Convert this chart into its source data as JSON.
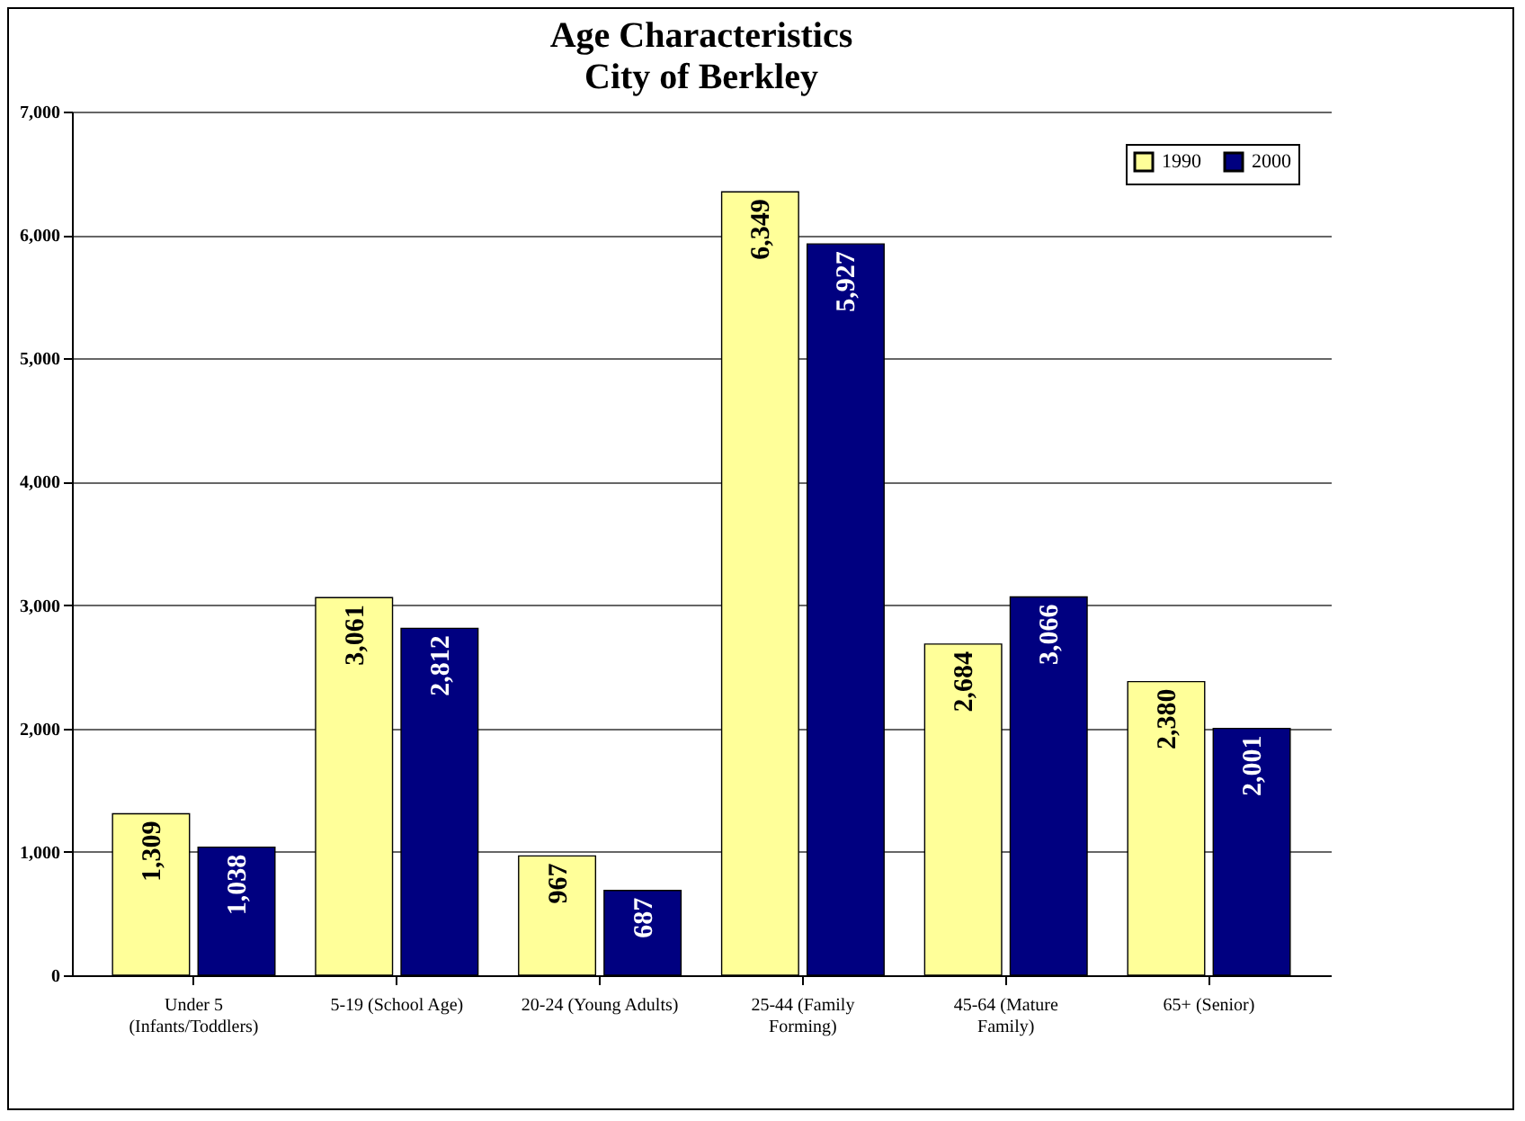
{
  "chart_data": {
    "type": "bar",
    "title": "Age Characteristics",
    "subtitle": "City of Berkley",
    "categories": [
      "Under 5 (Infants/Toddlers)",
      "5-19 (School Age)",
      "20-24 (Young Adults)",
      "25-44 (Family Forming)",
      "45-64 (Mature Family)",
      "65+ (Senior)"
    ],
    "series": [
      {
        "name": "1990",
        "color": "#ffff99",
        "values": [
          1309,
          3061,
          967,
          6349,
          2684,
          2380
        ],
        "value_labels": [
          "1,309",
          "3,061",
          "967",
          "6,349",
          "2,684",
          "2,380"
        ]
      },
      {
        "name": "2000",
        "color": "#000080",
        "values": [
          1038,
          2812,
          687,
          5927,
          3066,
          2001
        ],
        "value_labels": [
          "1,038",
          "2,812",
          "687",
          "5,927",
          "3,066",
          "2,001"
        ]
      }
    ],
    "ylim": [
      0,
      7000
    ],
    "yticks": [
      0,
      {
        "value": 1000,
        "label": "1,000"
      },
      {
        "value": 2000,
        "label": "2,000"
      },
      {
        "value": 3000,
        "label": "3,000"
      },
      {
        "value": 4000,
        "label": "4,000"
      },
      {
        "value": 5000,
        "label": "5,000"
      },
      {
        "value": 6000,
        "label": "6,000"
      },
      {
        "value": 7000,
        "label": "7,000"
      }
    ],
    "grid": "y",
    "legend": "top right"
  }
}
